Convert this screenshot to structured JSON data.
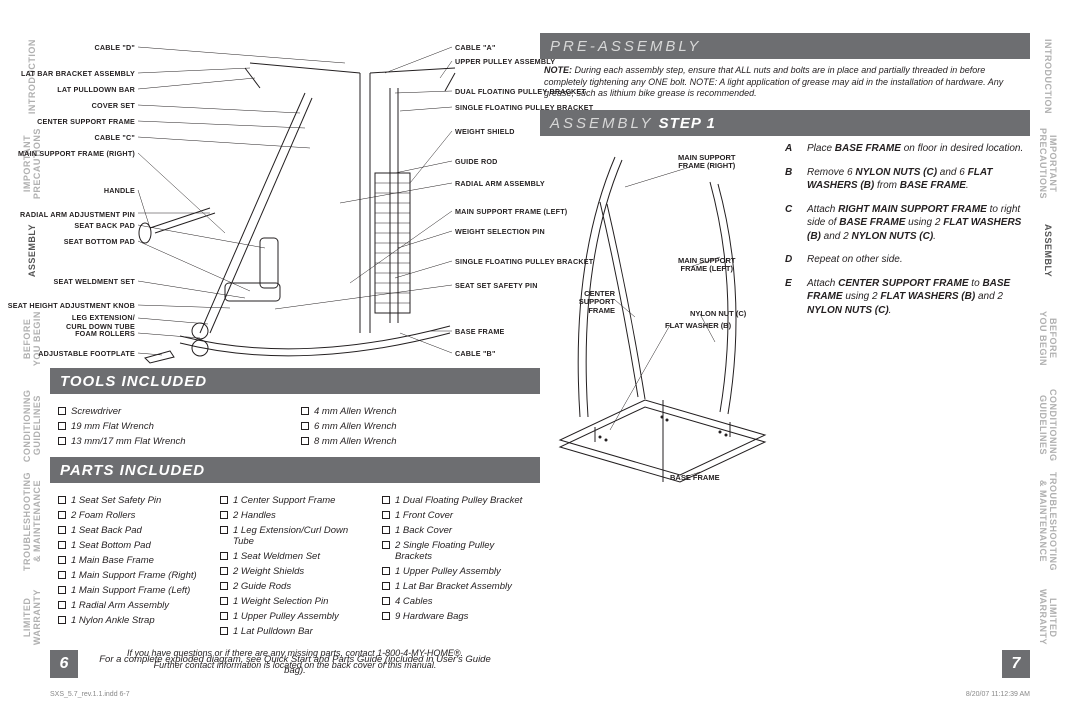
{
  "tabs": [
    "INTRODUCTION",
    "IMPORTANT\nPRECAUTIONS",
    "ASSEMBLY",
    "BEFORE\nYOU BEGIN",
    "CONDITIONING\nGUIDELINES",
    "TROUBLESHOOTING\n& MAINTENANCE",
    "LIMITED\nWARRANTY"
  ],
  "active_tab_index": 2,
  "left_page": {
    "page_number": 6,
    "diagram_labels_left": [
      "CABLE \"D\"",
      "LAT BAR BRACKET ASSEMBLY",
      "LAT PULLDOWN BAR",
      "COVER SET",
      "CENTER SUPPORT FRAME",
      "CABLE \"C\"",
      "MAIN SUPPORT FRAME (RIGHT)",
      "HANDLE",
      "RADIAL ARM ADJUSTMENT PIN",
      "SEAT BACK PAD",
      "SEAT BOTTOM PAD",
      "SEAT WELDMENT SET",
      "SEAT HEIGHT ADJUSTMENT KNOB",
      "LEG EXTENSION/\nCURL DOWN TUBE",
      "FOAM ROLLERS",
      "ADJUSTABLE FOOTPLATE"
    ],
    "diagram_labels_right": [
      "CABLE \"A\"",
      "UPPER PULLEY ASSEMBLY",
      "DUAL FLOATING PULLEY BRACKET",
      "SINGLE FLOATING PULLEY BRACKET",
      "WEIGHT SHIELD",
      "GUIDE ROD",
      "RADIAL ARM ASSEMBLY",
      "MAIN SUPPORT FRAME (LEFT)",
      "WEIGHT SELECTION PIN",
      "SINGLE FLOATING PULLEY BRACKET",
      "SEAT SET SAFETY PIN",
      "BASE FRAME",
      "CABLE \"B\""
    ],
    "tools_header": "TOOLS INCLUDED",
    "tools_cols": [
      [
        "Screwdriver",
        "19 mm Flat Wrench",
        "13 mm/17 mm Flat Wrench"
      ],
      [
        "4 mm Allen Wrench",
        "6 mm Allen Wrench",
        "8 mm Allen Wrench"
      ]
    ],
    "parts_header": "PARTS INCLUDED",
    "parts_cols": [
      [
        "1 Seat Set Safety Pin",
        "2 Foam Rollers",
        "1 Seat Back Pad",
        "1 Seat Bottom Pad",
        "1 Main Base Frame",
        "1 Main Support Frame (Right)",
        "1 Main Support Frame (Left)",
        "1 Radial Arm Assembly",
        "1 Nylon Ankle Strap"
      ],
      [
        "1 Center Support Frame",
        "2 Handles",
        "1 Leg Extension/Curl Down Tube",
        "1 Seat Weldmen Set",
        "2 Weight Shields",
        "2 Guide Rods",
        "1 Weight Selection Pin",
        "1 Upper Pulley Assembly",
        "1 Lat Pulldown Bar"
      ],
      [
        "1 Dual Floating Pulley Bracket",
        "1 Front Cover",
        "1 Back Cover",
        "2 Single Floating Pulley Brackets",
        "1 Upper Pulley Assembly",
        "1 Lat Bar Bracket Assembly",
        "4 Cables",
        "9 Hardware Bags"
      ]
    ],
    "footnote1": "If you have questions or if there are any missing parts, contact 1-800-4-MY-HOME®.",
    "footnote2": "Further contact information is located on the back cover of this manual.",
    "exploded_note": "For a complete exploded diagram, see Quick Start and Parts Guide (included in User's Guide bag)."
  },
  "right_page": {
    "page_number": 7,
    "pre_header_light": "PRE-ASSEMBLY",
    "note_label": "NOTE:",
    "note_text": "During each assembly step, ensure that ALL nuts and bolts are in place and partially threaded in before completely tightening any ONE bolt. NOTE: A light application of grease may aid in the installation of hardware. Any grease, such as lithium bike grease is recommended.",
    "step_header_light": "ASSEMBLY",
    "step_header_bold": "STEP 1",
    "step_diagram_labels": {
      "main_right": "MAIN SUPPORT\nFRAME (RIGHT)",
      "main_left": "MAIN SUPPORT\nFRAME (LEFT)",
      "center": "CENTER SUPPORT\nFRAME",
      "nylon": "NYLON NUT (C)",
      "washer": "FLAT WASHER (B)",
      "base": "BASE FRAME"
    },
    "steps": [
      {
        "letter": "A",
        "html": "Place <b>BASE FRAME</b> on floor in desired location."
      },
      {
        "letter": "B",
        "html": "Remove 6 <b>NYLON NUTS (C)</b> and 6 <b>FLAT WASHERS (B)</b> from <b>BASE FRAME</b>."
      },
      {
        "letter": "C",
        "html": "Attach <b>RIGHT MAIN SUPPORT FRAME</b> to right side of <b>BASE FRAME</b> using 2 <b>FLAT WASHERS (B)</b> and 2 <b>NYLON NUTS (C)</b>."
      },
      {
        "letter": "D",
        "html": "Repeat on other side."
      },
      {
        "letter": "E",
        "html": "Attach <b>CENTER SUPPORT FRAME</b> to <b>BASE FRAME</b> using 2 <b>FLAT WASHERS (B)</b> and 2 <b>NYLON NUTS (C)</b>."
      }
    ]
  },
  "footer_left": "SXS_5.7_rev.1.1.indd   6-7",
  "footer_right": "8/20/07   11:12:39 AM",
  "colors": {
    "bar_bg": "#6d6e71",
    "bar_light_text": "#d8d8d8",
    "tab_inactive": "#b0b0b0",
    "tab_active": "#555555",
    "text": "#231f20"
  }
}
